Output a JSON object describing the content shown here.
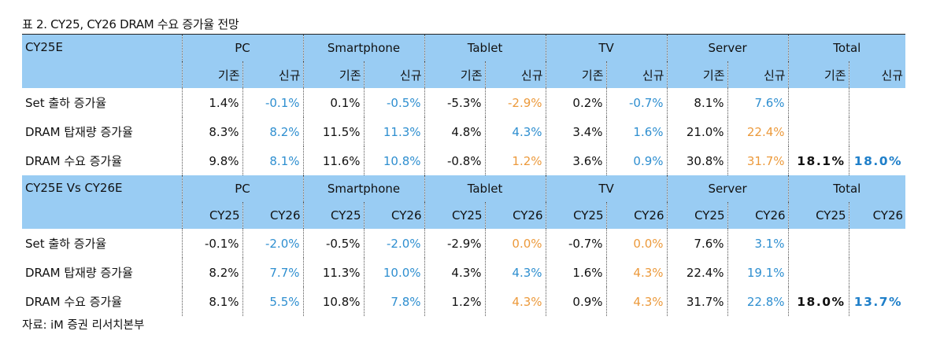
{
  "title": "표 2. CY25, CY26 DRAM 수요 증가율 전망",
  "source": "자료: iM 증권 리서치본부",
  "colors": {
    "header_bg": "#99ccf3",
    "blue": "#2f8fd0",
    "orange": "#ec9a3c"
  },
  "table1": {
    "corner": "CY25E",
    "groups": [
      "PC",
      "Smartphone",
      "Tablet",
      "TV",
      "Server",
      "Total"
    ],
    "subs": [
      "기존",
      "신규"
    ],
    "rows": [
      {
        "label": "Set 출하 증가율",
        "values": [
          "1.4%",
          "-0.1%",
          "0.1%",
          "-0.5%",
          "-5.3%",
          "-2.9%",
          "0.2%",
          "-0.7%",
          "8.1%",
          "7.6%",
          "",
          ""
        ]
      },
      {
        "label": "DRAM 탑재량 증가율",
        "values": [
          "8.3%",
          "8.2%",
          "11.5%",
          "11.3%",
          "4.8%",
          "4.3%",
          "3.4%",
          "1.6%",
          "21.0%",
          "22.4%",
          "",
          ""
        ]
      },
      {
        "label": "DRAM 수요 증가율",
        "values": [
          "9.8%",
          "8.1%",
          "11.6%",
          "10.8%",
          "-0.8%",
          "1.2%",
          "3.6%",
          "0.9%",
          "30.8%",
          "31.7%",
          "18.1%",
          "18.0%"
        ]
      }
    ]
  },
  "table2": {
    "corner": "CY25E Vs CY26E",
    "groups": [
      "PC",
      "Smartphone",
      "Tablet",
      "TV",
      "Server",
      "Total"
    ],
    "subs": [
      "CY25",
      "CY26"
    ],
    "rows": [
      {
        "label": "Set 출하 증가율",
        "values": [
          "-0.1%",
          "-2.0%",
          "-0.5%",
          "-2.0%",
          "-2.9%",
          "0.0%",
          "-0.7%",
          "0.0%",
          "7.6%",
          "3.1%",
          "",
          ""
        ]
      },
      {
        "label": "DRAM 탑재량 증가율",
        "values": [
          "8.2%",
          "7.7%",
          "11.3%",
          "10.0%",
          "4.3%",
          "4.3%",
          "1.6%",
          "4.3%",
          "22.4%",
          "19.1%",
          "",
          ""
        ]
      },
      {
        "label": "DRAM 수요 증가율",
        "values": [
          "8.1%",
          "5.5%",
          "10.8%",
          "7.8%",
          "1.2%",
          "4.3%",
          "0.9%",
          "4.3%",
          "31.7%",
          "22.8%",
          "18.0%",
          "13.7%"
        ]
      }
    ]
  }
}
